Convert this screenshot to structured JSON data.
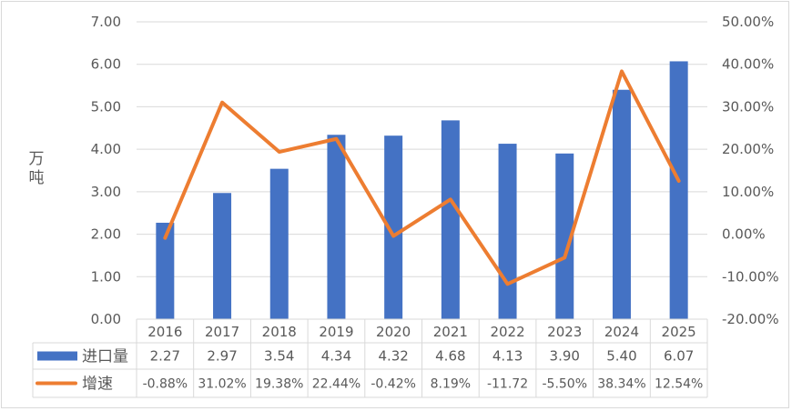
{
  "chart_data": {
    "type": "bar",
    "categories": [
      "2016",
      "2017",
      "2018",
      "2019",
      "2020",
      "2021",
      "2022",
      "2023",
      "2024",
      "2025"
    ],
    "ylabel": "万吨",
    "ylim": [
      0,
      7
    ],
    "y_ticks": [
      "0.00",
      "1.00",
      "2.00",
      "3.00",
      "4.00",
      "5.00",
      "6.00",
      "7.00"
    ],
    "y2lim": [
      -20,
      50
    ],
    "y2_ticks": [
      "-20.00%",
      "-10.00%",
      "0.00%",
      "10.00%",
      "20.00%",
      "30.00%",
      "40.00%",
      "50.00%"
    ],
    "grid": true,
    "legend": "data-table",
    "series": [
      {
        "name": "进口量",
        "type": "bar",
        "axis": "left",
        "color": "#4472C4",
        "values": [
          2.27,
          2.97,
          3.54,
          4.34,
          4.32,
          4.68,
          4.13,
          3.9,
          5.4,
          6.07
        ],
        "labels": [
          "2.27",
          "2.97",
          "3.54",
          "4.34",
          "4.32",
          "4.68",
          "4.13",
          "3.90",
          "5.40",
          "6.07"
        ]
      },
      {
        "name": "增速",
        "type": "line",
        "axis": "right",
        "color": "#ED7D31",
        "values": [
          -0.88,
          31.02,
          19.38,
          22.44,
          -0.42,
          8.19,
          -11.72,
          -5.5,
          38.34,
          12.54
        ],
        "labels": [
          "-0.88%",
          "31.02%",
          "19.38%",
          "22.44%",
          "-0.42%",
          "8.19%",
          "-11.72",
          "-5.50%",
          "38.34%",
          "12.54%"
        ]
      }
    ]
  }
}
